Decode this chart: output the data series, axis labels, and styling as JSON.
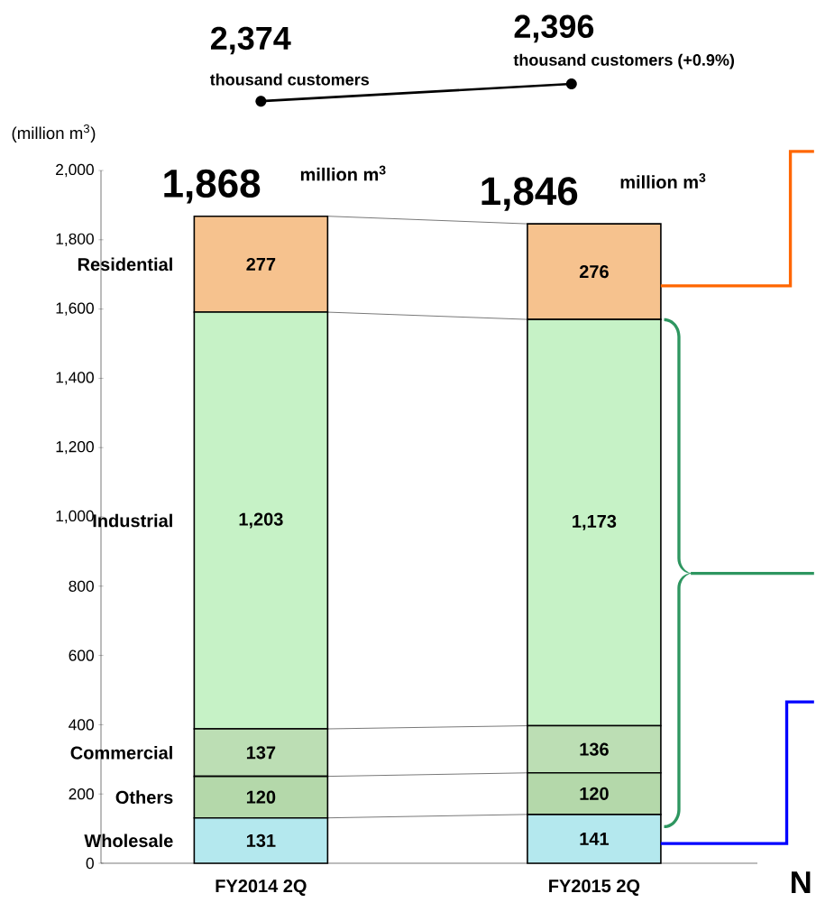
{
  "chart_data": {
    "type": "bar",
    "stacked": true,
    "ylabel": "(million m$^{3}$)",
    "categories": [
      "FY2014  2Q",
      "FY2015  2Q"
    ],
    "series": [
      {
        "name": "Wholesale",
        "color": "#b4e8ee",
        "values": [
          131,
          141
        ],
        "value_labels": [
          "131",
          "141"
        ]
      },
      {
        "name": "Others",
        "color": "#b4d8aa",
        "values": [
          120,
          120
        ],
        "value_labels": [
          "120",
          "120"
        ]
      },
      {
        "name": "Commercial",
        "color": "#bcdeb4",
        "values": [
          137,
          136
        ],
        "value_labels": [
          "137",
          "136"
        ]
      },
      {
        "name": "Industrial",
        "color": "#c6f2c6",
        "values": [
          1203,
          1173
        ],
        "value_labels": [
          "1,203",
          "1,173"
        ]
      },
      {
        "name": "Residential",
        "color": "#f6c28e",
        "values": [
          277,
          276
        ],
        "value_labels": [
          "277",
          "276"
        ]
      }
    ],
    "totals": [
      "1,868",
      "1,846"
    ],
    "annotations": [
      "2,374",
      "thousand customers",
      "2,396",
      "thousand customers (+0.9%)",
      "million m$^{3}$",
      "million m$^{3}$",
      "N"
    ],
    "ylim": [
      0,
      2000
    ],
    "yticks": [
      0,
      200,
      400,
      600,
      800,
      {
        "value": 1000,
        "label": "1,000"
      },
      {
        "value": 1200,
        "label": "1,200"
      },
      {
        "value": 1400,
        "label": "1,400"
      },
      {
        "value": 1600,
        "label": "1,600"
      },
      {
        "value": 1800,
        "label": "1,800"
      },
      {
        "value": 2000,
        "label": "2,000"
      }
    ],
    "grid": false,
    "legend": false
  }
}
